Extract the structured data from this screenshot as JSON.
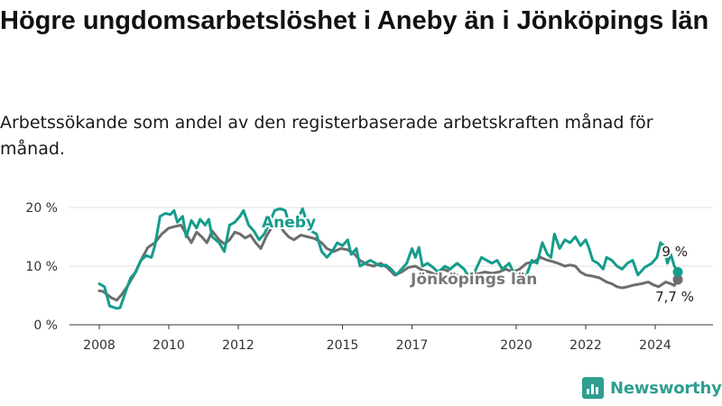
{
  "header": {
    "title": "Högre ungdomsarbetslöshet i Aneby än i Jönköpings län",
    "subtitle": "Arbetssökande som andel av den registerbaserade arbetskraften månad för månad."
  },
  "brand": {
    "name": "Newsworthy"
  },
  "chart_data": {
    "type": "line",
    "title": "Högre ungdomsarbetslöshet i Aneby än i Jönköpings län",
    "subtitle": "Arbetssökande som andel av den registerbaserade arbetskraften månad för månad.",
    "xlabel": "",
    "ylabel": "",
    "x_ticks": [
      2008,
      2010,
      2012,
      2015,
      2017,
      2020,
      2022,
      2024
    ],
    "x_tick_labels": [
      "2008",
      "2010",
      "2012",
      "2015",
      "2017",
      "2020",
      "2022",
      "2024"
    ],
    "y_ticks": [
      0,
      10,
      20
    ],
    "y_tick_labels": [
      "0 %",
      "10 %",
      "20 %"
    ],
    "ylim": [
      0,
      20
    ],
    "xlim": [
      2007.0,
      2025.2
    ],
    "grid": "horizontal",
    "series": [
      {
        "name": "Aneby",
        "color": "#159c8c",
        "end_label": "9 %",
        "points": [
          [
            2008.0,
            7.0
          ],
          [
            2008.15,
            6.5
          ],
          [
            2008.3,
            3.2
          ],
          [
            2008.5,
            2.8
          ],
          [
            2008.6,
            2.9
          ],
          [
            2008.75,
            5.5
          ],
          [
            2008.9,
            8.0
          ],
          [
            2009.05,
            9.0
          ],
          [
            2009.2,
            11.0
          ],
          [
            2009.35,
            11.8
          ],
          [
            2009.5,
            11.5
          ],
          [
            2009.6,
            13.5
          ],
          [
            2009.75,
            18.5
          ],
          [
            2009.9,
            19.0
          ],
          [
            2010.05,
            18.8
          ],
          [
            2010.15,
            19.5
          ],
          [
            2010.25,
            17.5
          ],
          [
            2010.4,
            18.5
          ],
          [
            2010.5,
            15.0
          ],
          [
            2010.65,
            17.8
          ],
          [
            2010.8,
            16.5
          ],
          [
            2010.9,
            18.0
          ],
          [
            2011.05,
            17.0
          ],
          [
            2011.15,
            18.0
          ],
          [
            2011.25,
            15.0
          ],
          [
            2011.45,
            14.0
          ],
          [
            2011.6,
            12.5
          ],
          [
            2011.75,
            17.0
          ],
          [
            2011.9,
            17.5
          ],
          [
            2012.05,
            18.5
          ],
          [
            2012.15,
            19.5
          ],
          [
            2012.3,
            17.0
          ],
          [
            2012.45,
            16.0
          ],
          [
            2012.6,
            14.5
          ],
          [
            2012.75,
            15.5
          ],
          [
            2012.9,
            17.5
          ],
          [
            2013.05,
            19.5
          ],
          [
            2013.2,
            19.8
          ],
          [
            2013.35,
            19.5
          ],
          [
            2013.5,
            16.5
          ],
          [
            2013.6,
            17.0
          ],
          [
            2013.75,
            18.5
          ],
          [
            2013.85,
            19.8
          ],
          [
            2014.0,
            17.0
          ],
          [
            2014.1,
            16.0
          ],
          [
            2014.25,
            15.5
          ],
          [
            2014.4,
            12.5
          ],
          [
            2014.55,
            11.5
          ],
          [
            2014.7,
            12.5
          ],
          [
            2014.85,
            14.0
          ],
          [
            2015.0,
            13.5
          ],
          [
            2015.15,
            14.5
          ],
          [
            2015.25,
            12.0
          ],
          [
            2015.4,
            13.0
          ],
          [
            2015.5,
            10.0
          ],
          [
            2015.65,
            10.5
          ],
          [
            2015.8,
            11.0
          ],
          [
            2015.95,
            10.5
          ],
          [
            2016.1,
            10.0
          ],
          [
            2016.25,
            10.2
          ],
          [
            2016.4,
            9.5
          ],
          [
            2016.55,
            8.5
          ],
          [
            2016.7,
            9.5
          ],
          [
            2016.85,
            10.5
          ],
          [
            2017.0,
            13.0
          ],
          [
            2017.1,
            11.5
          ],
          [
            2017.2,
            13.2
          ],
          [
            2017.3,
            10.0
          ],
          [
            2017.45,
            10.5
          ],
          [
            2017.6,
            9.8
          ],
          [
            2017.75,
            9.0
          ],
          [
            2017.95,
            10.0
          ],
          [
            2018.1,
            9.5
          ],
          [
            2018.3,
            10.5
          ],
          [
            2018.5,
            9.5
          ],
          [
            2018.6,
            8.5
          ],
          [
            2018.8,
            9.0
          ],
          [
            2019.0,
            11.5
          ],
          [
            2019.15,
            11.0
          ],
          [
            2019.3,
            10.5
          ],
          [
            2019.45,
            11.0
          ],
          [
            2019.6,
            9.5
          ],
          [
            2019.8,
            10.5
          ],
          [
            2019.95,
            8.5
          ],
          [
            2020.1,
            8.8
          ],
          [
            2020.3,
            8.5
          ],
          [
            2020.45,
            11.0
          ],
          [
            2020.6,
            10.5
          ],
          [
            2020.75,
            14.0
          ],
          [
            2020.9,
            12.0
          ],
          [
            2021.0,
            11.5
          ],
          [
            2021.1,
            15.5
          ],
          [
            2021.25,
            13.0
          ],
          [
            2021.4,
            14.5
          ],
          [
            2021.55,
            14.0
          ],
          [
            2021.7,
            15.0
          ],
          [
            2021.85,
            13.5
          ],
          [
            2022.0,
            14.5
          ],
          [
            2022.1,
            13.0
          ],
          [
            2022.2,
            11.0
          ],
          [
            2022.35,
            10.5
          ],
          [
            2022.5,
            9.5
          ],
          [
            2022.6,
            11.5
          ],
          [
            2022.75,
            11.0
          ],
          [
            2022.9,
            10.0
          ],
          [
            2023.05,
            9.5
          ],
          [
            2023.2,
            10.5
          ],
          [
            2023.35,
            11.0
          ],
          [
            2023.5,
            8.5
          ],
          [
            2023.7,
            9.8
          ],
          [
            2023.9,
            10.5
          ],
          [
            2024.05,
            11.5
          ],
          [
            2024.15,
            14.0
          ],
          [
            2024.25,
            13.5
          ],
          [
            2024.35,
            10.5
          ],
          [
            2024.45,
            12.0
          ],
          [
            2024.55,
            10.0
          ],
          [
            2024.65,
            9.0
          ]
        ]
      },
      {
        "name": "Jönköpings län",
        "color": "#6d6d6d",
        "end_label": "7,7 %",
        "points": [
          [
            2008.0,
            5.8
          ],
          [
            2008.1,
            5.7
          ],
          [
            2008.2,
            5.3
          ],
          [
            2008.35,
            4.6
          ],
          [
            2008.5,
            4.2
          ],
          [
            2008.65,
            5.2
          ],
          [
            2008.8,
            6.5
          ],
          [
            2009.0,
            8.5
          ],
          [
            2009.2,
            11.0
          ],
          [
            2009.4,
            13.2
          ],
          [
            2009.6,
            14.0
          ],
          [
            2009.8,
            15.5
          ],
          [
            2010.0,
            16.5
          ],
          [
            2010.2,
            16.8
          ],
          [
            2010.35,
            17.0
          ],
          [
            2010.5,
            15.5
          ],
          [
            2010.65,
            14.0
          ],
          [
            2010.8,
            15.8
          ],
          [
            2010.95,
            15.0
          ],
          [
            2011.1,
            14.0
          ],
          [
            2011.25,
            16.0
          ],
          [
            2011.45,
            14.5
          ],
          [
            2011.6,
            13.8
          ],
          [
            2011.75,
            14.5
          ],
          [
            2011.9,
            15.8
          ],
          [
            2012.05,
            15.5
          ],
          [
            2012.2,
            14.8
          ],
          [
            2012.35,
            15.3
          ],
          [
            2012.5,
            14.0
          ],
          [
            2012.65,
            13.0
          ],
          [
            2012.8,
            15.0
          ],
          [
            2013.0,
            17.0
          ],
          [
            2013.15,
            17.5
          ],
          [
            2013.3,
            16.0
          ],
          [
            2013.45,
            15.0
          ],
          [
            2013.6,
            14.5
          ],
          [
            2013.8,
            15.3
          ],
          [
            2014.0,
            15.0
          ],
          [
            2014.2,
            14.7
          ],
          [
            2014.4,
            14.0
          ],
          [
            2014.55,
            13.0
          ],
          [
            2014.75,
            12.5
          ],
          [
            2014.95,
            13.0
          ],
          [
            2015.15,
            12.8
          ],
          [
            2015.35,
            12.0
          ],
          [
            2015.5,
            11.0
          ],
          [
            2015.7,
            10.3
          ],
          [
            2015.9,
            10.0
          ],
          [
            2016.1,
            10.5
          ],
          [
            2016.3,
            9.7
          ],
          [
            2016.5,
            8.5
          ],
          [
            2016.7,
            9.0
          ],
          [
            2016.9,
            9.8
          ],
          [
            2017.1,
            10.0
          ],
          [
            2017.3,
            9.3
          ],
          [
            2017.5,
            9.0
          ],
          [
            2017.7,
            8.5
          ],
          [
            2017.9,
            9.5
          ],
          [
            2018.1,
            9.0
          ],
          [
            2018.3,
            8.5
          ],
          [
            2018.5,
            8.0
          ],
          [
            2018.7,
            8.5
          ],
          [
            2018.9,
            8.7
          ],
          [
            2019.1,
            9.0
          ],
          [
            2019.3,
            8.8
          ],
          [
            2019.5,
            9.0
          ],
          [
            2019.7,
            9.5
          ],
          [
            2019.9,
            9.0
          ],
          [
            2020.1,
            9.5
          ],
          [
            2020.3,
            10.5
          ],
          [
            2020.5,
            10.7
          ],
          [
            2020.7,
            11.5
          ],
          [
            2020.9,
            11.0
          ],
          [
            2021.05,
            10.8
          ],
          [
            2021.2,
            10.5
          ],
          [
            2021.4,
            10.0
          ],
          [
            2021.55,
            10.2
          ],
          [
            2021.7,
            10.0
          ],
          [
            2021.85,
            9.0
          ],
          [
            2022.0,
            8.5
          ],
          [
            2022.2,
            8.3
          ],
          [
            2022.4,
            8.0
          ],
          [
            2022.6,
            7.3
          ],
          [
            2022.75,
            7.0
          ],
          [
            2022.9,
            6.5
          ],
          [
            2023.05,
            6.3
          ],
          [
            2023.2,
            6.5
          ],
          [
            2023.4,
            6.8
          ],
          [
            2023.6,
            7.0
          ],
          [
            2023.8,
            7.3
          ],
          [
            2023.95,
            6.8
          ],
          [
            2024.1,
            6.5
          ],
          [
            2024.3,
            7.3
          ],
          [
            2024.45,
            7.0
          ],
          [
            2024.55,
            6.7
          ],
          [
            2024.65,
            7.7
          ]
        ]
      }
    ]
  }
}
